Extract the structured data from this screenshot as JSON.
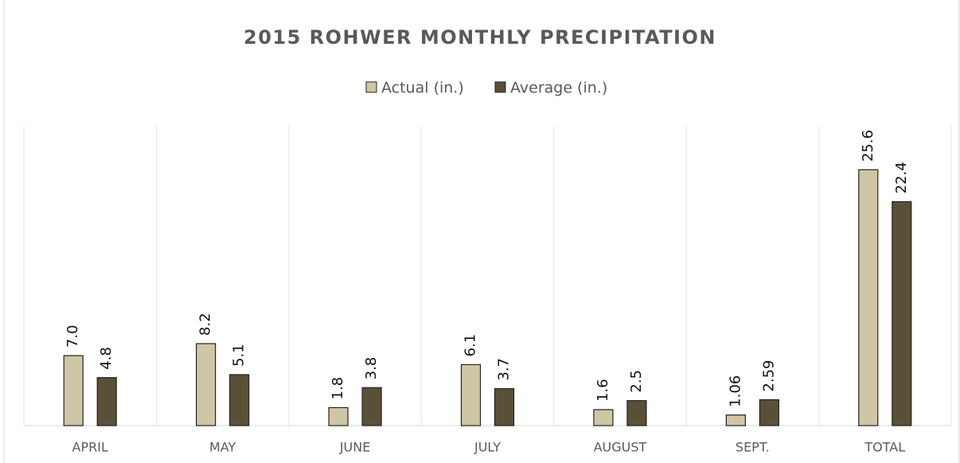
{
  "chart_data": {
    "type": "bar",
    "title": "2015 ROHWER MONTHLY PRECIPITATION",
    "categories": [
      "APRIL",
      "MAY",
      "JUNE",
      "JULY",
      "AUGUST",
      "SEPT.",
      "TOTAL"
    ],
    "series": [
      {
        "name": "Actual (in.)",
        "color": "#cfc6a5",
        "values": [
          7.0,
          8.2,
          1.8,
          6.1,
          1.6,
          1.06,
          25.6
        ],
        "value_labels": [
          "7.0",
          "8.2",
          "1.8",
          "6.1",
          "1.6",
          "1.06",
          "25.6"
        ]
      },
      {
        "name": "Average (in.)",
        "color": "#5a5037",
        "values": [
          4.8,
          5.1,
          3.8,
          3.7,
          2.5,
          2.59,
          22.4
        ],
        "value_labels": [
          "4.8",
          "5.1",
          "3.8",
          "3.7",
          "2.5",
          "2.59",
          "22.4"
        ]
      }
    ],
    "ylim": [
      0,
      30
    ],
    "legend": "top"
  }
}
